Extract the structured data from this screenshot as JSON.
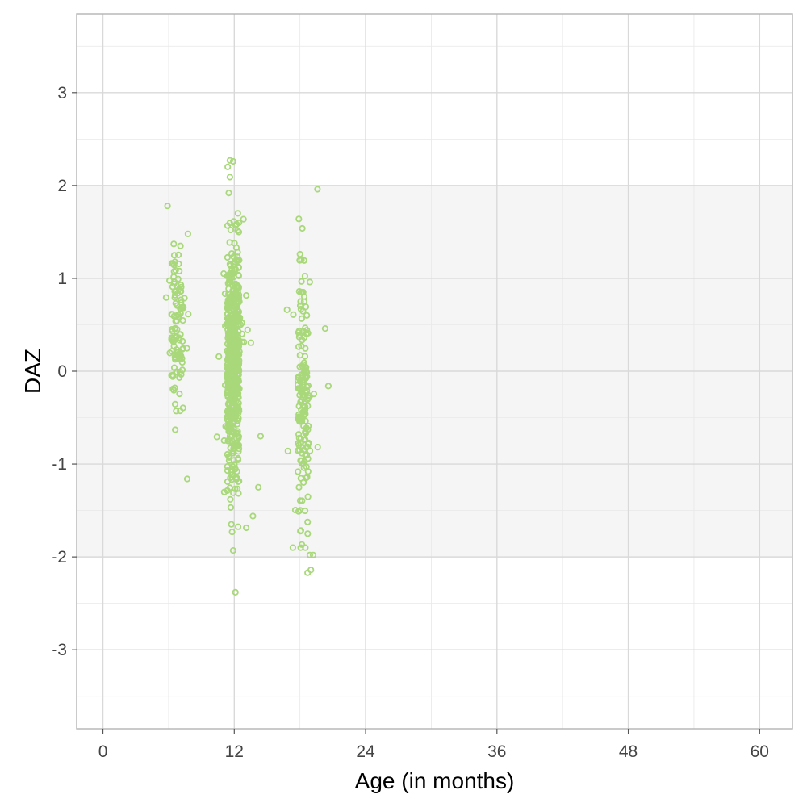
{
  "chart_data": {
    "type": "scatter",
    "xlabel": "Age (in months)",
    "ylabel": "DAZ",
    "xlim": [
      -2.4,
      63.0
    ],
    "ylim": [
      -3.85,
      3.85
    ],
    "x_ticks": [
      0,
      12,
      24,
      36,
      48,
      60
    ],
    "x_tick_labels": [
      "0",
      "12",
      "24",
      "36",
      "48",
      "60"
    ],
    "y_ticks": [
      -3,
      -2,
      -1,
      0,
      1,
      2,
      3
    ],
    "y_tick_labels": [
      "-3",
      "-2",
      "-1",
      "0",
      "1",
      "2",
      "3"
    ],
    "shaded_band": [
      -2,
      2
    ],
    "grid": true,
    "colors": {
      "point": "#a8d87a",
      "band": "#f5f5f5",
      "grid_major": "#d9d9d9",
      "grid_minor": "#e8e8e8",
      "panel_border": "#b3b3b3"
    },
    "clusters": [
      {
        "x_center": 6.8,
        "x_spread": 0.55,
        "y_mean": 0.5,
        "y_sd": 0.45,
        "n": 110
      },
      {
        "x_center": 11.9,
        "x_spread": 0.55,
        "y_mean": 0.12,
        "y_sd": 0.62,
        "n": 650
      },
      {
        "x_center": 18.3,
        "x_spread": 0.5,
        "y_mean": -0.35,
        "y_sd": 0.72,
        "n": 170
      }
    ],
    "notable_points": [
      [
        5.9,
        1.78
      ],
      [
        7.7,
        -1.16
      ],
      [
        6.6,
        -0.63
      ],
      [
        11.6,
        2.27
      ],
      [
        11.9,
        2.26
      ],
      [
        11.4,
        2.2
      ],
      [
        11.6,
        2.09
      ],
      [
        11.5,
        1.92
      ],
      [
        12.1,
        -2.38
      ],
      [
        11.9,
        -1.93
      ],
      [
        11.8,
        -1.73
      ],
      [
        14.2,
        -1.25
      ],
      [
        13.7,
        -1.56
      ],
      [
        14.4,
        -0.7
      ],
      [
        19.6,
        1.96
      ],
      [
        17.9,
        1.64
      ],
      [
        18.7,
        -2.17
      ],
      [
        19.0,
        -2.14
      ],
      [
        18.9,
        -1.98
      ],
      [
        19.2,
        -1.98
      ],
      [
        20.3,
        0.46
      ],
      [
        20.6,
        -0.16
      ],
      [
        16.9,
        -0.86
      ],
      [
        17.4,
        0.61
      ],
      [
        18.0,
        1.26
      ],
      [
        18.9,
        0.96
      ]
    ]
  }
}
